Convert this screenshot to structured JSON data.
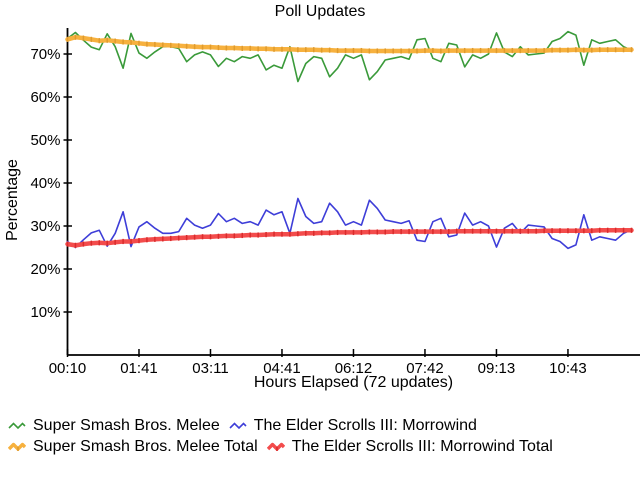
{
  "title": "Poll Updates",
  "chart_data": {
    "type": "line",
    "title": "Poll Updates",
    "xlabel": "Hours Elapsed (72 updates)",
    "ylabel": "Percentage",
    "n_points": 72,
    "x_tick_labels": [
      "00:10",
      "01:41",
      "03:11",
      "04:41",
      "06:12",
      "07:42",
      "09:13",
      "10:43"
    ],
    "x_tick_indices": [
      0,
      9,
      18,
      27,
      36,
      45,
      54,
      63
    ],
    "y_tick_labels": [
      "10%",
      "20%",
      "30%",
      "40%",
      "50%",
      "60%",
      "70%"
    ],
    "y_tick_values": [
      10,
      20,
      30,
      40,
      50,
      60,
      70
    ],
    "ylim": [
      0,
      76
    ],
    "grid": false,
    "legend_position": "bottom-left",
    "background_color": "#ffffff",
    "axis_color": "#000000",
    "series": [
      {
        "name": "Super Smash Bros. Melee",
        "color": "#3A9A3A",
        "style": "thin",
        "values": [
          73.6,
          75.0,
          73.2,
          71.6,
          71.0,
          74.7,
          71.7,
          66.7,
          74.8,
          70.2,
          69.0,
          70.5,
          71.7,
          71.7,
          71.3,
          68.2,
          69.8,
          70.5,
          69.8,
          67.1,
          69.0,
          68.2,
          69.4,
          69.0,
          69.8,
          66.3,
          67.4,
          66.7,
          71.7,
          63.6,
          67.8,
          69.4,
          69.0,
          64.7,
          66.7,
          69.8,
          69.0,
          69.8,
          64.0,
          65.9,
          68.6,
          69.0,
          69.4,
          68.8,
          73.3,
          73.6,
          69.0,
          68.2,
          72.5,
          72.1,
          67.0,
          69.8,
          69.0,
          70.0,
          74.9,
          70.5,
          69.4,
          71.7,
          69.8,
          70.0,
          70.2,
          72.9,
          73.6,
          75.2,
          74.4,
          67.4,
          73.3,
          72.5,
          72.9,
          73.3,
          71.7,
          70.9
        ]
      },
      {
        "name": "The Elder Scrolls III: Morrowind",
        "color": "#3E3ED8",
        "style": "thin",
        "values": [
          26.4,
          25.0,
          26.8,
          28.4,
          29.0,
          25.3,
          28.3,
          33.3,
          25.2,
          29.8,
          31.0,
          29.5,
          28.3,
          28.3,
          28.7,
          31.8,
          30.2,
          29.5,
          30.2,
          32.9,
          31.0,
          31.8,
          30.6,
          31.0,
          30.2,
          33.7,
          32.6,
          33.3,
          28.3,
          36.4,
          32.2,
          30.6,
          31.0,
          35.3,
          33.3,
          30.2,
          31.0,
          30.2,
          36.0,
          34.1,
          31.4,
          31.0,
          30.6,
          31.2,
          26.7,
          26.4,
          31.0,
          31.8,
          27.5,
          27.9,
          33.0,
          30.2,
          31.0,
          30.0,
          25.1,
          29.5,
          30.6,
          28.3,
          30.2,
          30.0,
          29.8,
          27.1,
          26.4,
          24.8,
          25.6,
          32.6,
          26.7,
          27.5,
          27.1,
          26.7,
          28.3,
          29.1
        ]
      },
      {
        "name": "Super Smash Bros. Melee Total",
        "color": "#F7B13E",
        "marker_color": "#E09B2D",
        "style": "thick",
        "values": [
          73.4,
          73.9,
          73.7,
          73.4,
          73.1,
          73.2,
          73.0,
          72.8,
          72.7,
          72.5,
          72.3,
          72.2,
          72.1,
          72.0,
          71.9,
          71.8,
          71.7,
          71.6,
          71.6,
          71.5,
          71.4,
          71.4,
          71.3,
          71.3,
          71.2,
          71.2,
          71.1,
          71.1,
          71.1,
          71.0,
          71.0,
          71.0,
          70.9,
          70.9,
          70.8,
          70.8,
          70.8,
          70.8,
          70.7,
          70.7,
          70.7,
          70.7,
          70.7,
          70.7,
          70.7,
          70.8,
          70.8,
          70.7,
          70.8,
          70.8,
          70.8,
          70.8,
          70.8,
          70.8,
          70.8,
          70.8,
          70.8,
          70.8,
          70.8,
          70.8,
          70.8,
          70.9,
          70.9,
          70.9,
          71.0,
          70.9,
          70.9,
          71.0,
          71.0,
          71.0,
          71.0,
          71.0
        ]
      },
      {
        "name": "The Elder Scrolls III: Morrowind Total",
        "color": "#F34C4C",
        "marker_color": "#DA2C2C",
        "style": "thick",
        "values": [
          25.8,
          25.5,
          25.8,
          26.0,
          26.1,
          26.0,
          26.2,
          26.4,
          26.4,
          26.6,
          26.8,
          26.9,
          27.0,
          27.1,
          27.2,
          27.3,
          27.4,
          27.5,
          27.5,
          27.6,
          27.7,
          27.7,
          27.8,
          27.9,
          27.9,
          28.0,
          28.1,
          28.1,
          28.1,
          28.2,
          28.3,
          28.3,
          28.4,
          28.4,
          28.5,
          28.5,
          28.5,
          28.5,
          28.6,
          28.6,
          28.6,
          28.7,
          28.7,
          28.7,
          28.7,
          28.7,
          28.7,
          28.7,
          28.7,
          28.8,
          28.8,
          28.8,
          28.8,
          28.8,
          28.8,
          28.8,
          28.8,
          28.8,
          28.8,
          28.8,
          28.9,
          28.9,
          28.9,
          28.9,
          28.9,
          28.9,
          28.9,
          29.0,
          29.0,
          29.0,
          29.0,
          29.0
        ]
      }
    ]
  }
}
